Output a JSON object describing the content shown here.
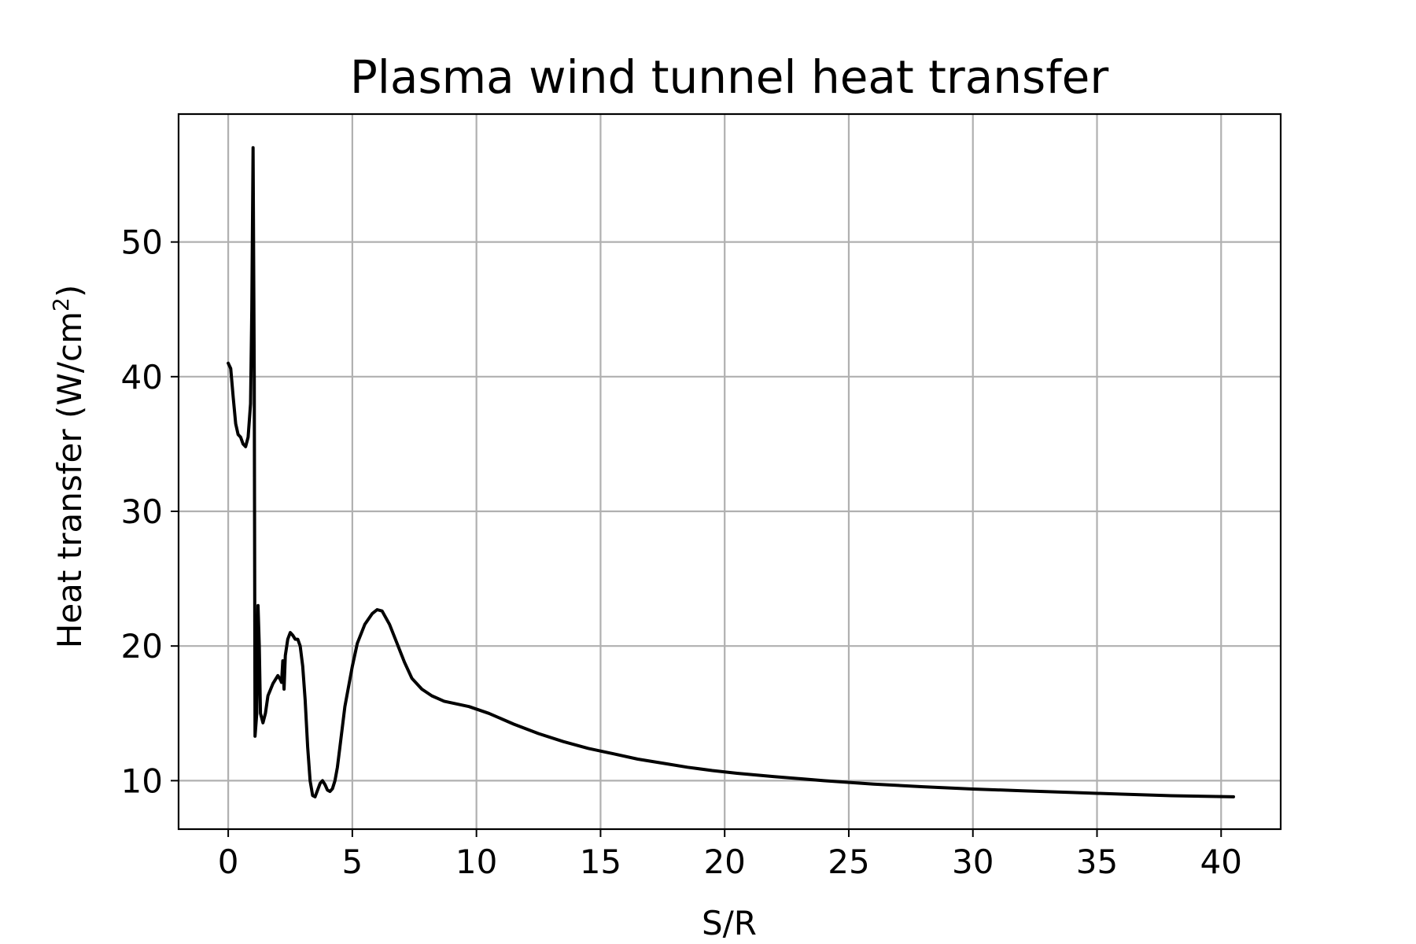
{
  "chart_data": {
    "type": "line",
    "title": "Plasma wind tunnel heat transfer",
    "xlabel": "S/R",
    "ylabel_prefix": "Heat transfer (W/cm",
    "ylabel_sup": "2",
    "ylabel_suffix": ")",
    "xlim": [
      -2,
      42.4
    ],
    "ylim": [
      6.4,
      59.5
    ],
    "grid": true,
    "xticks": [
      0,
      5,
      10,
      15,
      20,
      25,
      30,
      35,
      40
    ],
    "yticks": [
      10,
      20,
      30,
      40,
      50
    ],
    "series": [
      {
        "color": "#000000",
        "points": [
          [
            0.0,
            41.0
          ],
          [
            0.1,
            40.6
          ],
          [
            0.2,
            38.5
          ],
          [
            0.3,
            36.5
          ],
          [
            0.4,
            35.7
          ],
          [
            0.5,
            35.5
          ],
          [
            0.6,
            35.0
          ],
          [
            0.7,
            34.8
          ],
          [
            0.8,
            35.5
          ],
          [
            0.9,
            38.0
          ],
          [
            0.95,
            45.0
          ],
          [
            1.0,
            57.0
          ],
          [
            1.05,
            40.0
          ],
          [
            1.08,
            13.3
          ],
          [
            1.15,
            15.0
          ],
          [
            1.2,
            23.0
          ],
          [
            1.25,
            20.0
          ],
          [
            1.3,
            15.0
          ],
          [
            1.4,
            14.3
          ],
          [
            1.5,
            15.0
          ],
          [
            1.6,
            16.3
          ],
          [
            1.8,
            17.2
          ],
          [
            2.0,
            17.8
          ],
          [
            2.1,
            17.5
          ],
          [
            2.15,
            17.3
          ],
          [
            2.2,
            18.9
          ],
          [
            2.25,
            16.8
          ],
          [
            2.3,
            19.3
          ],
          [
            2.4,
            20.5
          ],
          [
            2.5,
            21.0
          ],
          [
            2.6,
            20.8
          ],
          [
            2.7,
            20.5
          ],
          [
            2.8,
            20.5
          ],
          [
            2.9,
            20.0
          ],
          [
            3.0,
            18.5
          ],
          [
            3.1,
            16.0
          ],
          [
            3.2,
            12.5
          ],
          [
            3.3,
            10.0
          ],
          [
            3.4,
            8.9
          ],
          [
            3.5,
            8.8
          ],
          [
            3.6,
            9.3
          ],
          [
            3.7,
            9.8
          ],
          [
            3.8,
            10.0
          ],
          [
            3.9,
            9.7
          ],
          [
            4.0,
            9.3
          ],
          [
            4.1,
            9.2
          ],
          [
            4.2,
            9.4
          ],
          [
            4.3,
            10.0
          ],
          [
            4.4,
            11.0
          ],
          [
            4.5,
            12.5
          ],
          [
            4.7,
            15.5
          ],
          [
            5.0,
            18.5
          ],
          [
            5.2,
            20.2
          ],
          [
            5.5,
            21.6
          ],
          [
            5.8,
            22.4
          ],
          [
            6.0,
            22.7
          ],
          [
            6.2,
            22.6
          ],
          [
            6.5,
            21.6
          ],
          [
            6.8,
            20.2
          ],
          [
            7.1,
            18.8
          ],
          [
            7.4,
            17.6
          ],
          [
            7.8,
            16.8
          ],
          [
            8.2,
            16.3
          ],
          [
            8.7,
            15.9
          ],
          [
            9.2,
            15.7
          ],
          [
            9.7,
            15.5
          ],
          [
            10.5,
            15.0
          ],
          [
            11.5,
            14.2
          ],
          [
            12.5,
            13.5
          ],
          [
            13.5,
            12.9
          ],
          [
            14.5,
            12.4
          ],
          [
            15.5,
            12.0
          ],
          [
            16.5,
            11.6
          ],
          [
            17.5,
            11.3
          ],
          [
            18.5,
            11.0
          ],
          [
            19.5,
            10.75
          ],
          [
            20.5,
            10.55
          ],
          [
            22.0,
            10.3
          ],
          [
            24.0,
            10.0
          ],
          [
            26.0,
            9.75
          ],
          [
            28.0,
            9.55
          ],
          [
            30.0,
            9.38
          ],
          [
            32.0,
            9.25
          ],
          [
            34.0,
            9.12
          ],
          [
            36.0,
            9.0
          ],
          [
            38.0,
            8.88
          ],
          [
            40.5,
            8.8
          ]
        ]
      }
    ]
  }
}
